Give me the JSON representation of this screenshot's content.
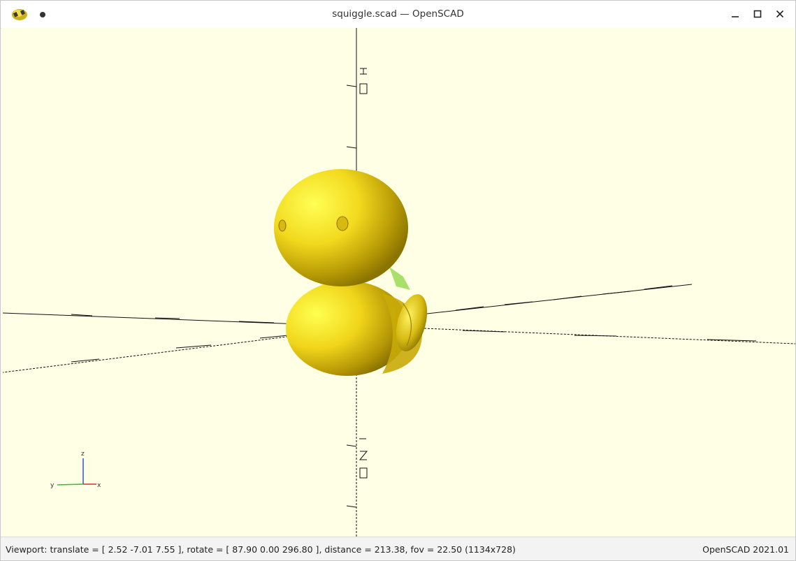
{
  "window": {
    "title": "squiggle.scad — OpenSCAD",
    "controls": {
      "minimize_icon": "minimize-icon",
      "maximize_icon": "maximize-icon",
      "close_icon": "close-icon"
    }
  },
  "viewport": {
    "background_color": "#ffffe6",
    "model_color": "#f5d916",
    "axes_indicator": {
      "z": "z",
      "y": "y",
      "x": "x"
    }
  },
  "statusbar": {
    "viewport_info": "Viewport: translate = [ 2.52 -7.01 7.55 ], rotate = [ 87.90 0.00 296.80 ], distance = 213.38, fov = 22.50 (1134x728)",
    "version": "OpenSCAD 2021.01"
  }
}
